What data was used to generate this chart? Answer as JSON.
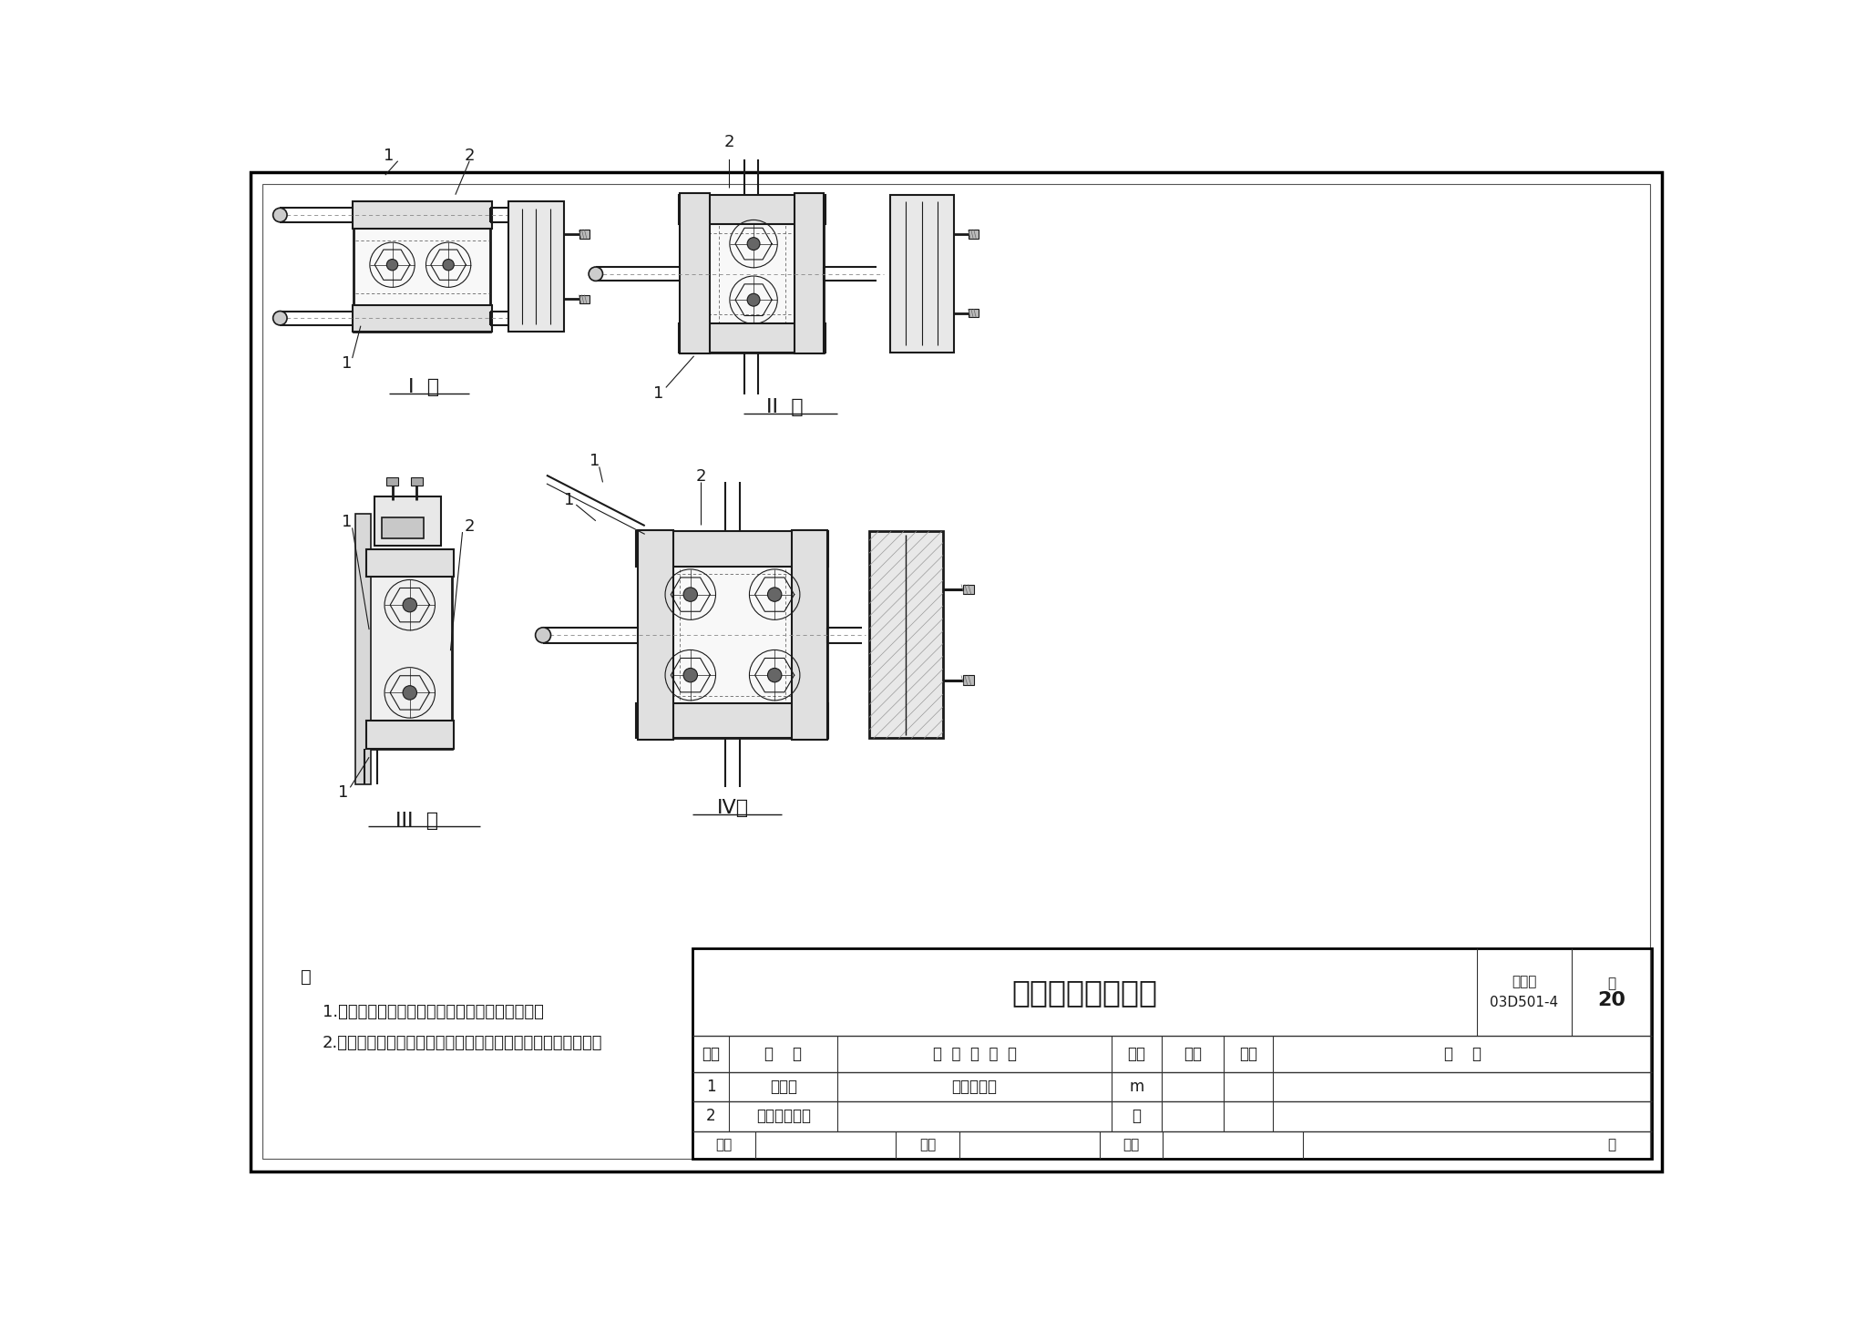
{
  "bg_color": "#ffffff",
  "line_color": "#1a1a1a",
  "title": "接地线连接（二）",
  "atlas_no": "03D501-4",
  "page": "20",
  "label_type1": "I  型",
  "label_type2": "II  型",
  "label_type3": "III  型",
  "label_type4": "IV型",
  "note_title": "注",
  "note1": "1.接地线连接方式的选择，由具体工程设计确定。",
  "note2": "2.接地线连接器的型号、规格根据使用要求选用专业厂家产品。",
  "th1": "序号",
  "th2": "名    称",
  "th3": "型  号  及  规  格",
  "th4": "单位",
  "th5": "数量",
  "th6": "页次",
  "th7": "备    注",
  "td11": "1",
  "td12": "接地线",
  "td13": "见工程设计",
  "td14": "m",
  "td21": "2",
  "td22": "接地线连接器",
  "td24": "个",
  "atlas_label": "图集号",
  "review_label": "审核",
  "check_label": "校对",
  "design_label": "设计",
  "page_label": "页"
}
